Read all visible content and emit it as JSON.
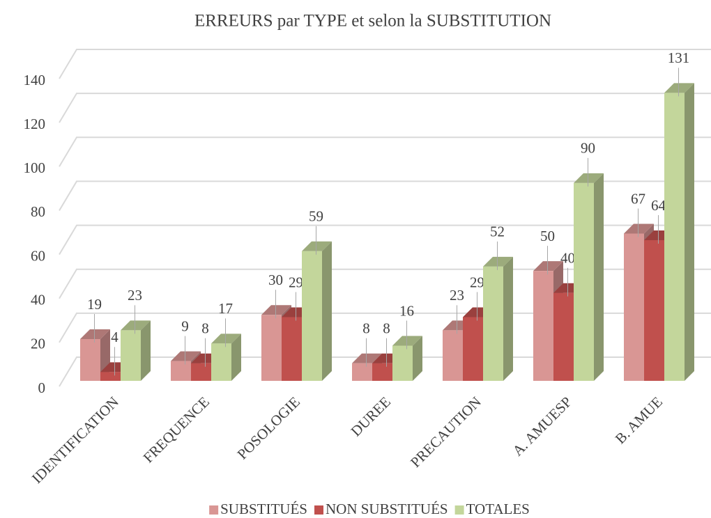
{
  "chart_data": {
    "type": "bar3d",
    "title": "ERREURS par TYPE et selon la SUBSTITUTION",
    "categories": [
      "IDENTIFICATION",
      "FREQUENCE",
      "POSOLOGIE",
      "DUREE",
      "PRECAUTION",
      "A. AMUESP",
      "B. AMUE"
    ],
    "series": [
      {
        "name": "SUBSTITUÉS",
        "color": "#d99694",
        "values": [
          19,
          9,
          30,
          8,
          23,
          50,
          67
        ]
      },
      {
        "name": "NON SUBSTITUÉS",
        "color": "#c0504d",
        "values": [
          4,
          8,
          29,
          8,
          29,
          40,
          64
        ]
      },
      {
        "name": "TOTALES",
        "color": "#c3d69b",
        "values": [
          23,
          17,
          59,
          16,
          52,
          90,
          131
        ]
      }
    ],
    "ylim": [
      0,
      140
    ],
    "yticks": [
      0,
      20,
      40,
      60,
      80,
      100,
      120,
      140
    ],
    "grid": true,
    "legend": "bottom"
  }
}
